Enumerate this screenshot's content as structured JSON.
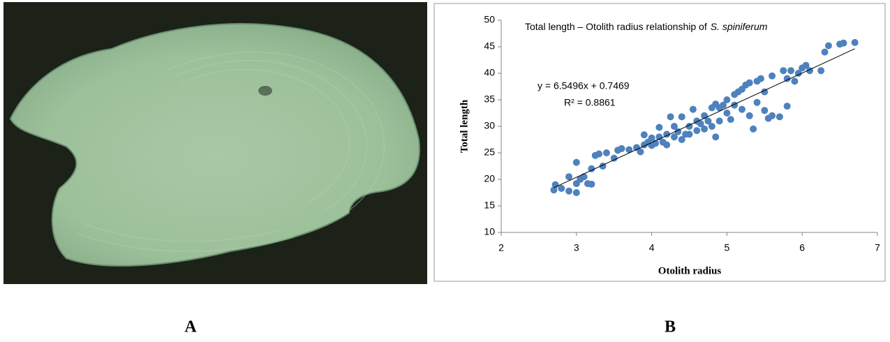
{
  "panels": {
    "left_label": "A",
    "right_label": "B"
  },
  "chart_data": {
    "type": "scatter",
    "title": "Total length – Otolith radius relationship of",
    "title_italic": "S. spiniferum",
    "x_label": "Otolith radius",
    "y_label": "Total length",
    "annotations": [
      "y = 6.5496x + 0.7469",
      "R² = 0.8861"
    ],
    "color": "#4f81bd",
    "xlim": [
      2,
      7
    ],
    "xticks": [
      2,
      3,
      4,
      5,
      6,
      7
    ],
    "ylim": [
      10,
      50
    ],
    "yticks": [
      10,
      15,
      20,
      25,
      30,
      35,
      40,
      45,
      50
    ],
    "trendline": {
      "x": [
        2.7,
        6.7
      ],
      "y": [
        18.43,
        44.63
      ]
    },
    "x": [
      2.7,
      2.72,
      2.8,
      2.9,
      2.9,
      3.0,
      3.0,
      3.0,
      3.05,
      3.1,
      3.15,
      3.2,
      3.2,
      3.25,
      3.3,
      3.35,
      3.4,
      3.5,
      3.55,
      3.6,
      3.7,
      3.8,
      3.85,
      3.9,
      3.9,
      3.95,
      4.0,
      4.0,
      4.05,
      4.1,
      4.1,
      4.15,
      4.2,
      4.2,
      4.25,
      4.3,
      4.3,
      4.35,
      4.4,
      4.4,
      4.45,
      4.5,
      4.5,
      4.55,
      4.6,
      4.6,
      4.65,
      4.7,
      4.7,
      4.75,
      4.8,
      4.8,
      4.85,
      4.85,
      4.9,
      4.9,
      4.95,
      5.0,
      5.0,
      5.05,
      5.1,
      5.1,
      5.15,
      5.2,
      5.2,
      5.25,
      5.3,
      5.3,
      5.35,
      5.4,
      5.4,
      5.45,
      5.5,
      5.5,
      5.55,
      5.6,
      5.6,
      5.7,
      5.75,
      5.8,
      5.8,
      5.85,
      5.9,
      5.95,
      6.0,
      6.05,
      6.1,
      6.25,
      6.3,
      6.35,
      6.5,
      6.55,
      6.7
    ],
    "values": [
      18,
      19,
      18.3,
      17.8,
      20.5,
      17.5,
      19.2,
      23.2,
      20,
      20.5,
      19.2,
      19.1,
      22,
      24.5,
      24.8,
      22.5,
      25,
      24,
      25.5,
      25.8,
      25.6,
      26,
      25.2,
      26.5,
      28.4,
      27,
      26.4,
      27.8,
      26.8,
      28,
      29.8,
      27,
      28.5,
      26.5,
      31.8,
      28,
      30,
      29,
      27.5,
      31.8,
      28.5,
      30,
      28.5,
      33.2,
      29.2,
      31,
      30.5,
      29.5,
      32,
      31,
      33.5,
      30,
      28,
      34.2,
      33.5,
      31,
      34,
      35,
      32.5,
      31.3,
      36,
      34,
      36.5,
      37,
      33.2,
      37.8,
      38.2,
      32,
      29.5,
      38.5,
      34.5,
      39,
      33,
      36.5,
      31.5,
      32,
      39.5,
      31.8,
      40.5,
      33.8,
      39,
      40.5,
      38.5,
      40,
      41,
      41.5,
      40.5,
      40.5,
      44,
      45.2,
      45.5,
      45.7,
      45.8
    ]
  }
}
